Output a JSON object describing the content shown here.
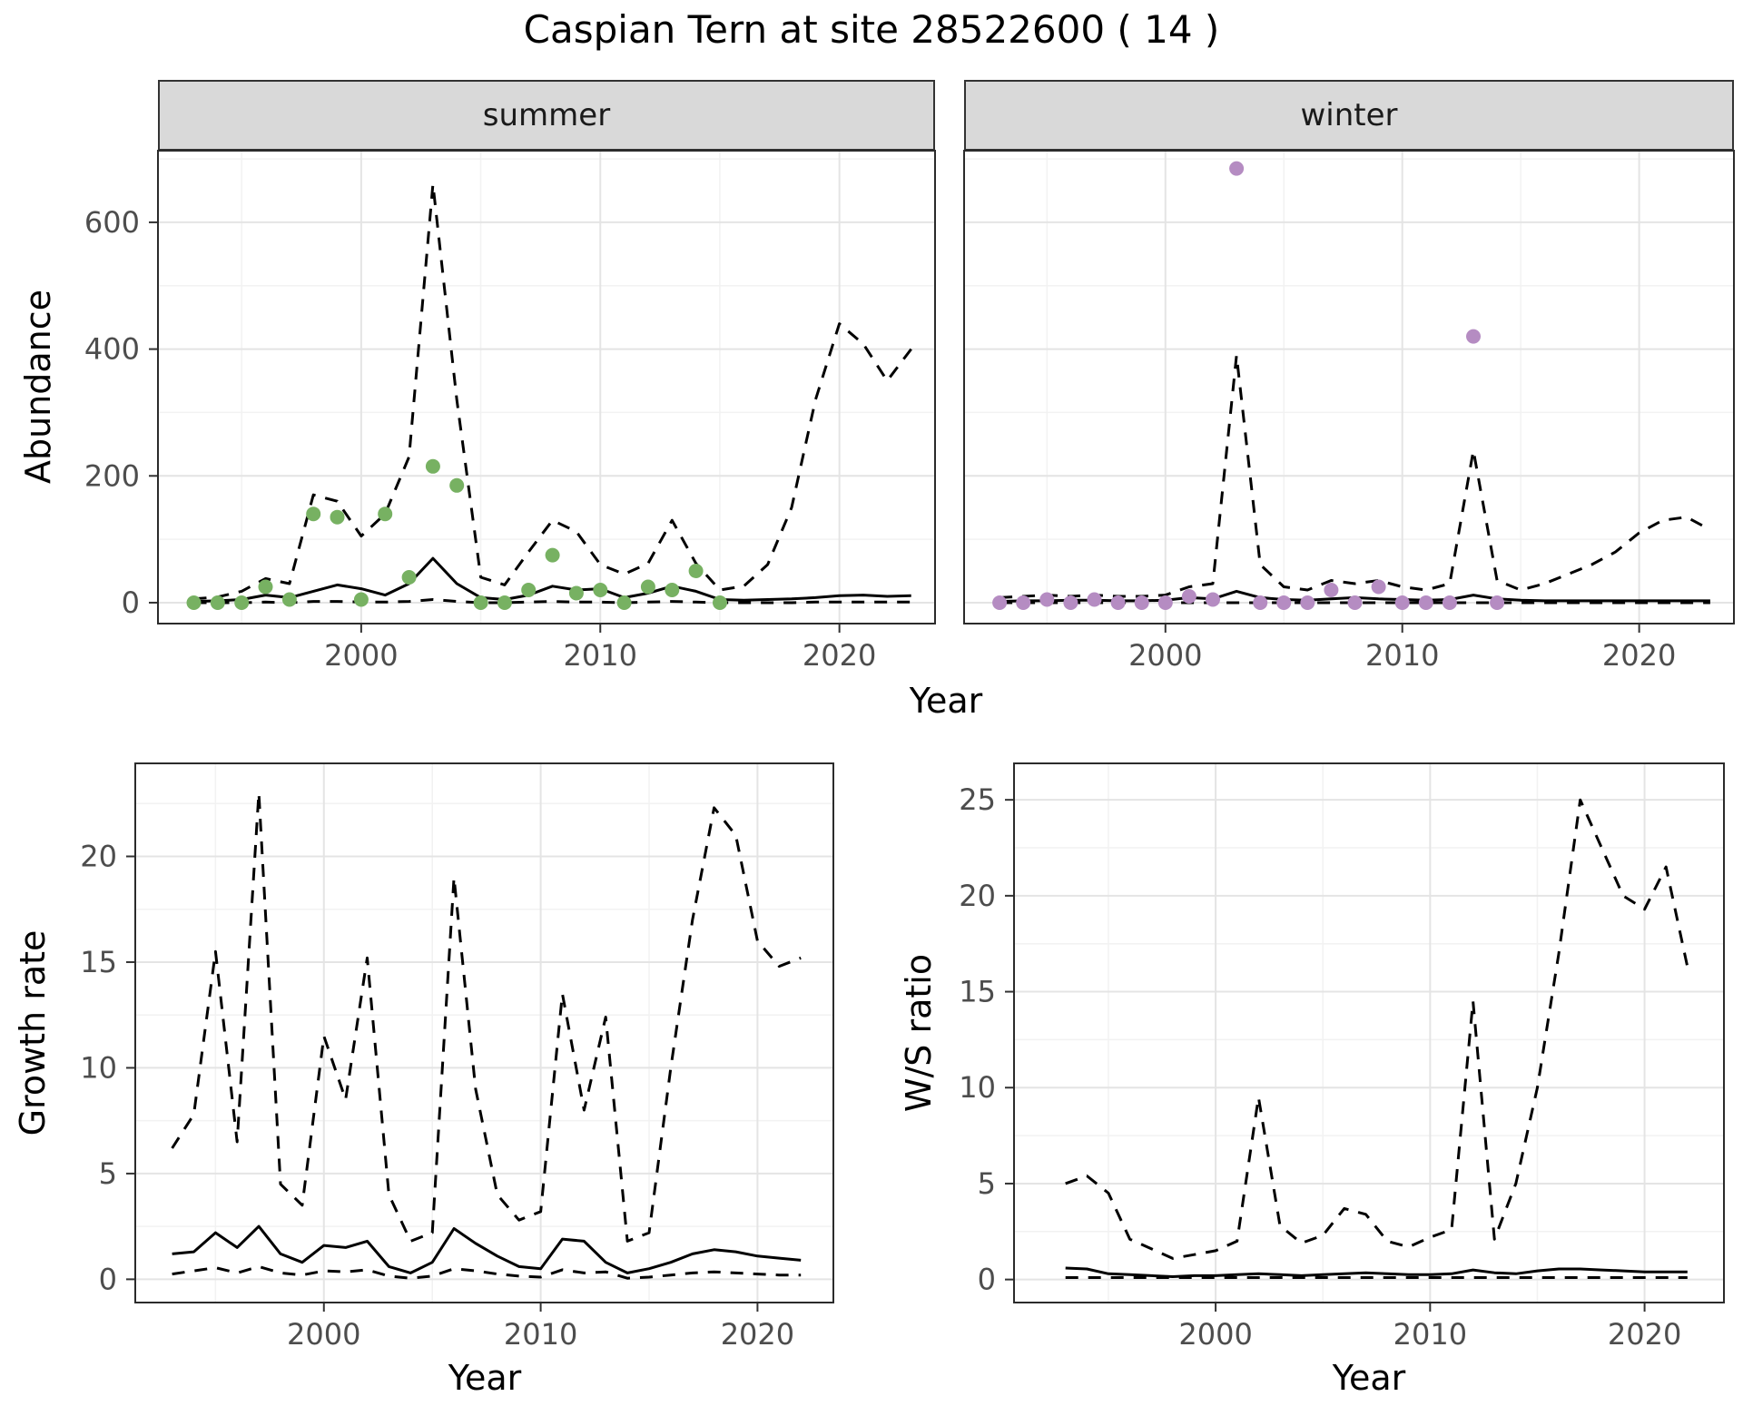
{
  "title": "Caspian Tern at site 28522600 ( 14 )",
  "facets": {
    "summer": "summer",
    "winter": "winter"
  },
  "axes": {
    "top": {
      "y_label": "Abundance",
      "x_label": "Year"
    },
    "bottom_left": {
      "y_label": "Growth rate",
      "x_label": "Year"
    },
    "bottom_right": {
      "y_label": "W/S ratio",
      "x_label": "Year"
    }
  },
  "colors": {
    "line": "#000000",
    "summer_point": "#77b162",
    "winter_point": "#b58cc2",
    "grid_major": "#e4e4e4",
    "grid_minor": "#f2f2f2",
    "panel_border": "#2b2b2b",
    "tick": "#333333",
    "tick_label": "#4d4d4d",
    "strip_bg": "#d9d9d9"
  },
  "chart_data": [
    {
      "id": "abundance-summer",
      "type": "line",
      "facet_label": "summer",
      "xlabel": "Year",
      "ylabel": "Abundance",
      "xlim": [
        1991.5,
        2024
      ],
      "ylim": [
        -33,
        713
      ],
      "x_ticks": [
        2000,
        2010,
        2020
      ],
      "y_ticks": [
        0,
        200,
        400,
        600
      ],
      "x_minor": [
        1995,
        2005,
        2015
      ],
      "y_minor": [
        100,
        300,
        500,
        700
      ],
      "grid": true,
      "legend": "none",
      "series": [
        {
          "name": "upper-ci",
          "style": "dashed",
          "x0": 1993,
          "y": [
            6,
            9,
            18,
            38,
            30,
            170,
            160,
            105,
            140,
            230,
            660,
            320,
            40,
            28,
            80,
            130,
            112,
            60,
            45,
            62,
            130,
            62,
            20,
            26,
            60,
            150,
            320,
            440,
            408,
            350,
            400
          ]
        },
        {
          "name": "lower-ci",
          "style": "dashed",
          "x0": 1993,
          "y": [
            0,
            0,
            0,
            1,
            0,
            2,
            2,
            1,
            1,
            2,
            5,
            2,
            0,
            0,
            1,
            2,
            1,
            1,
            0,
            1,
            2,
            1,
            0,
            0,
            0,
            0,
            1,
            1,
            1,
            1,
            1
          ]
        },
        {
          "name": "median",
          "style": "solid",
          "x0": 1993,
          "y": [
            2,
            3,
            5,
            12,
            8,
            18,
            28,
            22,
            12,
            30,
            70,
            30,
            8,
            5,
            12,
            26,
            20,
            22,
            8,
            15,
            26,
            18,
            5,
            4,
            5,
            6,
            8,
            11,
            12,
            10,
            11
          ]
        },
        {
          "name": "observed",
          "style": "points",
          "color_key": "summer_point",
          "x": [
            1993,
            1994,
            1995,
            1996,
            1997,
            1998,
            1999,
            2000,
            2001,
            2002,
            2003,
            2004,
            2005,
            2006,
            2007,
            2008,
            2009,
            2010,
            2011,
            2012,
            2013,
            2014,
            2015
          ],
          "y": [
            0,
            0,
            0,
            25,
            5,
            140,
            135,
            5,
            140,
            40,
            215,
            185,
            0,
            0,
            20,
            75,
            15,
            20,
            0,
            25,
            20,
            50,
            0
          ]
        }
      ]
    },
    {
      "id": "abundance-winter",
      "type": "line",
      "facet_label": "winter",
      "xlabel": "Year",
      "ylabel": "Abundance",
      "xlim": [
        1991.5,
        2024
      ],
      "ylim": [
        -33,
        713
      ],
      "x_ticks": [
        2000,
        2010,
        2020
      ],
      "y_ticks": [
        0,
        200,
        400,
        600
      ],
      "x_minor": [
        1995,
        2005,
        2015
      ],
      "y_minor": [
        100,
        300,
        500,
        700
      ],
      "grid": true,
      "legend": "none",
      "series": [
        {
          "name": "upper-ci",
          "style": "dashed",
          "x0": 1993,
          "y": [
            8,
            10,
            12,
            10,
            12,
            10,
            10,
            12,
            25,
            30,
            390,
            60,
            25,
            20,
            35,
            30,
            35,
            25,
            20,
            30,
            240,
            35,
            20,
            30,
            45,
            60,
            80,
            110,
            130,
            135,
            115
          ]
        },
        {
          "name": "lower-ci",
          "style": "dashed",
          "x0": 1993,
          "y": [
            0,
            0,
            0,
            0,
            0,
            0,
            0,
            0,
            0,
            0,
            0,
            0,
            0,
            0,
            0,
            0,
            0,
            0,
            0,
            0,
            0,
            0,
            0,
            0,
            0,
            0,
            0,
            0,
            0,
            0,
            0
          ]
        },
        {
          "name": "median",
          "style": "solid",
          "x0": 1993,
          "y": [
            2,
            3,
            3,
            4,
            4,
            3,
            3,
            4,
            8,
            6,
            18,
            8,
            5,
            4,
            6,
            8,
            6,
            5,
            4,
            5,
            12,
            6,
            4,
            3,
            3,
            3,
            3,
            3,
            3,
            3,
            3
          ]
        },
        {
          "name": "observed",
          "style": "points",
          "color_key": "winter_point",
          "x": [
            1993,
            1994,
            1995,
            1996,
            1997,
            1998,
            1999,
            2000,
            2001,
            2002,
            2003,
            2004,
            2005,
            2006,
            2007,
            2008,
            2009,
            2010,
            2011,
            2012,
            2013,
            2014
          ],
          "y": [
            0,
            0,
            5,
            0,
            5,
            0,
            0,
            0,
            10,
            5,
            685,
            0,
            0,
            0,
            20,
            0,
            25,
            0,
            0,
            0,
            420,
            0
          ]
        }
      ]
    },
    {
      "id": "growth-rate",
      "type": "line",
      "xlabel": "Year",
      "ylabel": "Growth rate",
      "xlim": [
        1991.3,
        2023.5
      ],
      "ylim": [
        -1.1,
        24.4
      ],
      "x_ticks": [
        2000,
        2010,
        2020
      ],
      "y_ticks": [
        0,
        5,
        10,
        15,
        20
      ],
      "x_minor": [
        1995,
        2005,
        2015
      ],
      "y_minor": [
        2.5,
        7.5,
        12.5,
        17.5,
        22.5
      ],
      "grid": true,
      "legend": "none",
      "series": [
        {
          "name": "upper-ci",
          "style": "dashed",
          "x0": 1993,
          "y": [
            6.2,
            7.8,
            15.5,
            6.5,
            23,
            4.5,
            3.5,
            11.5,
            8.5,
            15.2,
            4,
            1.8,
            2.2,
            19,
            9,
            4,
            2.8,
            3.2,
            13.5,
            8,
            12.4,
            1.8,
            2.2,
            10,
            17,
            22.3,
            21,
            16,
            14.8,
            15.2
          ]
        },
        {
          "name": "lower-ci",
          "style": "dashed",
          "x0": 1993,
          "y": [
            0.25,
            0.4,
            0.55,
            0.3,
            0.6,
            0.3,
            0.2,
            0.4,
            0.35,
            0.45,
            0.15,
            0.05,
            0.15,
            0.5,
            0.4,
            0.25,
            0.15,
            0.1,
            0.45,
            0.3,
            0.35,
            0.05,
            0.1,
            0.2,
            0.3,
            0.35,
            0.3,
            0.25,
            0.2,
            0.2
          ]
        },
        {
          "name": "median",
          "style": "solid",
          "x0": 1993,
          "y": [
            1.2,
            1.3,
            2.2,
            1.5,
            2.5,
            1.2,
            0.8,
            1.6,
            1.5,
            1.8,
            0.6,
            0.3,
            0.8,
            2.4,
            1.7,
            1.1,
            0.6,
            0.5,
            1.9,
            1.8,
            0.8,
            0.3,
            0.5,
            0.8,
            1.2,
            1.4,
            1.3,
            1.1,
            1.0,
            0.9
          ]
        }
      ]
    },
    {
      "id": "ws-ratio",
      "type": "line",
      "xlabel": "Year",
      "ylabel": "W/S ratio",
      "xlim": [
        1990.6,
        2023.7
      ],
      "ylim": [
        -1.2,
        26.9
      ],
      "x_ticks": [
        2000,
        2010,
        2020
      ],
      "y_ticks": [
        0,
        5,
        10,
        15,
        20,
        25
      ],
      "x_minor": [
        1995,
        2005,
        2015
      ],
      "y_minor": [
        2.5,
        7.5,
        12.5,
        17.5,
        22.5
      ],
      "grid": true,
      "legend": "none",
      "series": [
        {
          "name": "upper-ci",
          "style": "dashed",
          "x0": 1993,
          "y": [
            5.0,
            5.4,
            4.5,
            2.1,
            1.6,
            1.1,
            1.3,
            1.5,
            2.0,
            9.5,
            2.8,
            1.9,
            2.3,
            3.7,
            3.4,
            2.0,
            1.7,
            2.2,
            2.6,
            14.5,
            2.1,
            5.0,
            10.0,
            17.0,
            25.0,
            22.5,
            20.0,
            19.3,
            21.5,
            16.3
          ]
        },
        {
          "name": "lower-ci",
          "style": "dashed",
          "x0": 1993,
          "y": [
            0.1,
            0.1,
            0.1,
            0.1,
            0.1,
            0.1,
            0.1,
            0.1,
            0.1,
            0.1,
            0.1,
            0.1,
            0.1,
            0.1,
            0.1,
            0.1,
            0.1,
            0.1,
            0.1,
            0.1,
            0.1,
            0.1,
            0.1,
            0.1,
            0.1,
            0.1,
            0.1,
            0.1,
            0.1,
            0.1
          ]
        },
        {
          "name": "median",
          "style": "solid",
          "x0": 1993,
          "y": [
            0.6,
            0.55,
            0.3,
            0.25,
            0.2,
            0.15,
            0.2,
            0.2,
            0.25,
            0.3,
            0.25,
            0.2,
            0.25,
            0.3,
            0.35,
            0.3,
            0.25,
            0.25,
            0.3,
            0.5,
            0.35,
            0.3,
            0.45,
            0.55,
            0.55,
            0.5,
            0.45,
            0.4,
            0.4,
            0.4
          ]
        }
      ]
    }
  ]
}
